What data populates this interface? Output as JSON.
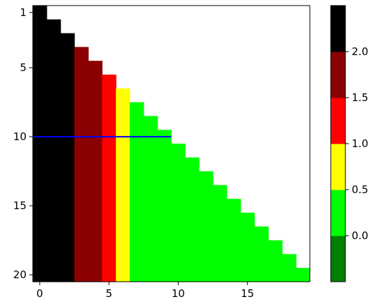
{
  "chart_data": {
    "type": "heatmap",
    "title": "",
    "xlabel": "",
    "ylabel": "",
    "x_ticks": [
      0,
      5,
      10,
      15
    ],
    "y_ticks": [
      1,
      5,
      10,
      15,
      20
    ],
    "n_rows": 20,
    "n_cols": 20,
    "column_values": [
      2.5,
      2.5,
      2.0,
      1.5,
      1.5,
      1.0,
      0.5,
      0.0,
      0.0,
      0.0,
      0.0,
      0.0,
      0.0,
      0.0,
      0.0,
      0.0,
      0.0,
      0.0,
      0.0,
      0.0
    ],
    "mask": "upper-right triangle blank: row r shows columns 0..r-1 (rows 1-20)",
    "overlay_line": {
      "row": 10,
      "x_start": 0,
      "x_end": 9.5,
      "color": "#0000ff"
    },
    "colorbar": {
      "ticks": [
        0.0,
        0.5,
        1.0,
        1.5,
        2.0
      ],
      "tick_labels": [
        "0.0",
        "0.5",
        "1.0",
        "1.5",
        "2.0"
      ],
      "range": [
        -0.5,
        2.5
      ],
      "levels": [
        {
          "from": -0.5,
          "to": 0.0,
          "color": "#008000"
        },
        {
          "from": 0.0,
          "to": 0.5,
          "color": "#00ff00"
        },
        {
          "from": 0.5,
          "to": 1.0,
          "color": "#ffff00"
        },
        {
          "from": 1.0,
          "to": 1.5,
          "color": "#ff0000"
        },
        {
          "from": 1.5,
          "to": 2.0,
          "color": "#8b0000"
        },
        {
          "from": 2.0,
          "to": 2.5,
          "color": "#000000"
        }
      ]
    }
  }
}
